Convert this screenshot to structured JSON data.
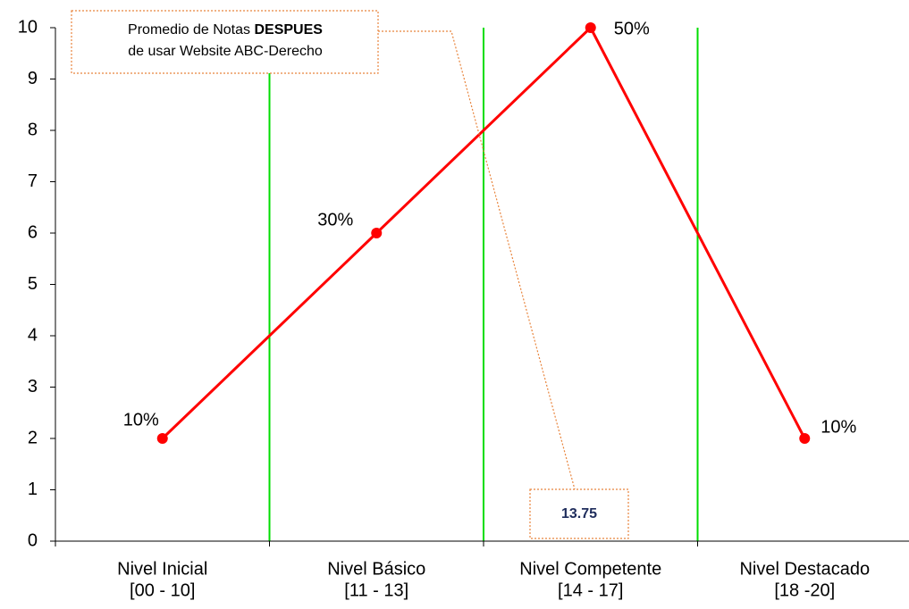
{
  "chart_data": {
    "type": "line",
    "categories": [
      [
        "Nivel Inicial",
        "[00 - 10]"
      ],
      [
        "Nivel Básico",
        "[11 - 13]"
      ],
      [
        "Nivel Competente",
        "[14 - 17]"
      ],
      [
        "Nivel Destacado",
        "[18 -20]"
      ]
    ],
    "values": [
      2,
      6,
      10,
      2
    ],
    "value_labels": [
      "10%",
      "30%",
      "50%",
      "10%"
    ],
    "color": "#ff0000",
    "separator_color": "#00dd00",
    "ylim": [
      0,
      10
    ],
    "yticks": [
      0,
      1,
      2,
      3,
      4,
      5,
      6,
      7,
      8,
      9,
      10
    ],
    "annotations": [
      {
        "text": [
          "Promedio de Notas",
          "DESPUES",
          "de usar Website ABC-Derecho"
        ]
      },
      {
        "text": "13.75"
      }
    ]
  }
}
